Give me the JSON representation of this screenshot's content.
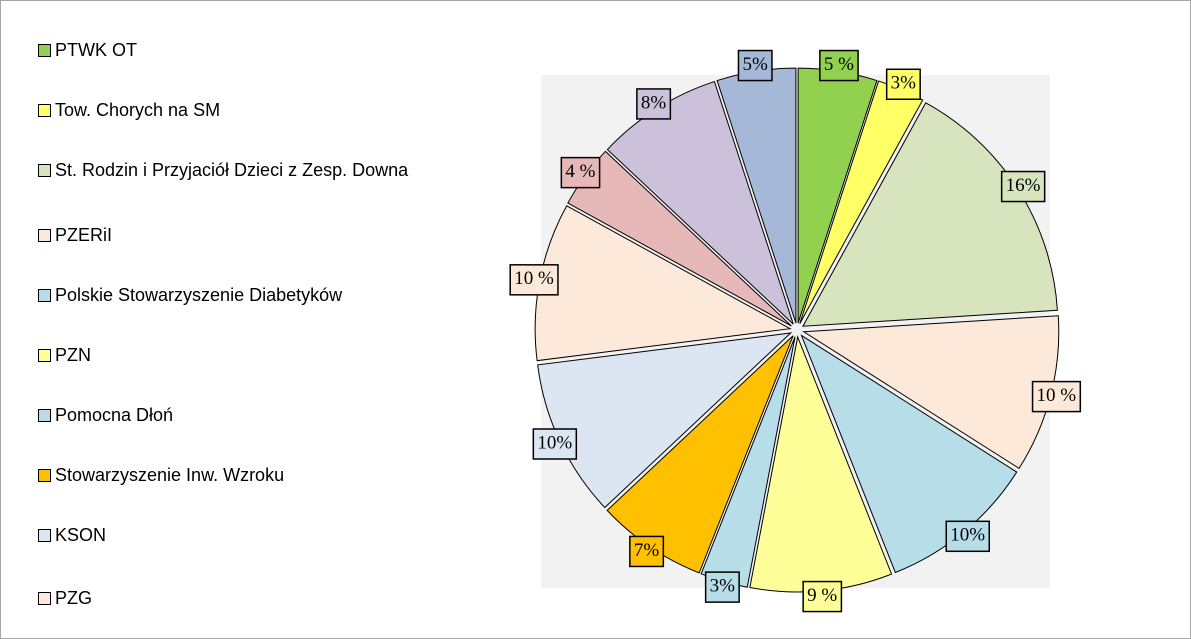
{
  "chart_data": {
    "type": "pie",
    "categories": [
      "PTWK OT",
      "Tow. Chorych na SM",
      "St. Rodzin i Przyjaciół Dzieci z Zesp. Downa",
      "PZERiI",
      "Polskie Stowarzyszenie Diabetyków",
      "PZN",
      "Pomocna Dłoń",
      "Stowarzyszenie Inw. Wzroku",
      "KSON",
      "PZG",
      null,
      null,
      null
    ],
    "values": [
      5,
      3,
      16,
      10,
      10,
      9,
      3,
      7,
      10,
      10,
      4,
      8,
      5
    ],
    "value_labels": [
      "5 %",
      "3%",
      "16%",
      "10 %",
      "10%",
      "9 %",
      "3%",
      "7%",
      "10%",
      "10 %",
      "4 %",
      "8%",
      "5%"
    ],
    "colors": [
      "#92d050",
      "#ffff66",
      "#d7e4bd",
      "#fde9d9",
      "#b7dde8",
      "#ffff99",
      "#b7dde8",
      "#ffc000",
      "#dce6f2",
      "#fde9d9",
      "#e6b9b8",
      "#ccc1da",
      "#a6b8d8"
    ],
    "legend": "left"
  }
}
